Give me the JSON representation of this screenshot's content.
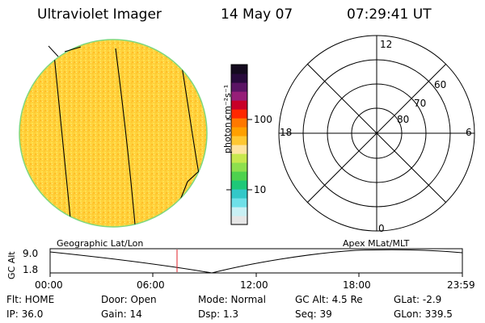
{
  "header": {
    "instrument": "Ultraviolet Imager",
    "date": "14 May 07",
    "time": "07:29:41 UT"
  },
  "colorbar": {
    "unit_label": "photon cm⁻²s⁻¹",
    "tick_100": "100",
    "tick_10": "10",
    "colors": [
      "#e6e6e6",
      "#c9f0f4",
      "#6fe0e8",
      "#33c8c8",
      "#1ec878",
      "#4ed24e",
      "#8ee04e",
      "#c8e84e",
      "#ffe4a0",
      "#ffc832",
      "#ffa000",
      "#ff7800",
      "#ff2800",
      "#c80028",
      "#961e78",
      "#5a1464",
      "#280a3c",
      "#140a1e"
    ]
  },
  "polar_grid": {
    "mlt_labels": {
      "top": "12",
      "bottom": "0",
      "left": "18",
      "right": "6"
    },
    "lat_labels": [
      "60",
      "70",
      "80"
    ]
  },
  "orbit_panel": {
    "left_caption": "Geographic Lat/Lon",
    "right_caption": "Apex MLat/MLT",
    "y_axis_label": "GC Alt",
    "y_ticks": [
      "9.0",
      "1.8"
    ],
    "x_ticks": [
      "00:00",
      "06:00",
      "12:00",
      "18:00",
      "23:59"
    ]
  },
  "status": {
    "flt": "Flt: HOME",
    "door": "Door: Open",
    "mode": "Mode: Normal",
    "gc_alt": "GC Alt: 4.5 Re",
    "glat": "GLat:  -2.9",
    "ip": "IP: 36.0",
    "gain": "Gain: 14",
    "dsp": "Dsp:    1.3",
    "seq": "Seq: 39",
    "glon": "GLon: 339.5"
  }
}
